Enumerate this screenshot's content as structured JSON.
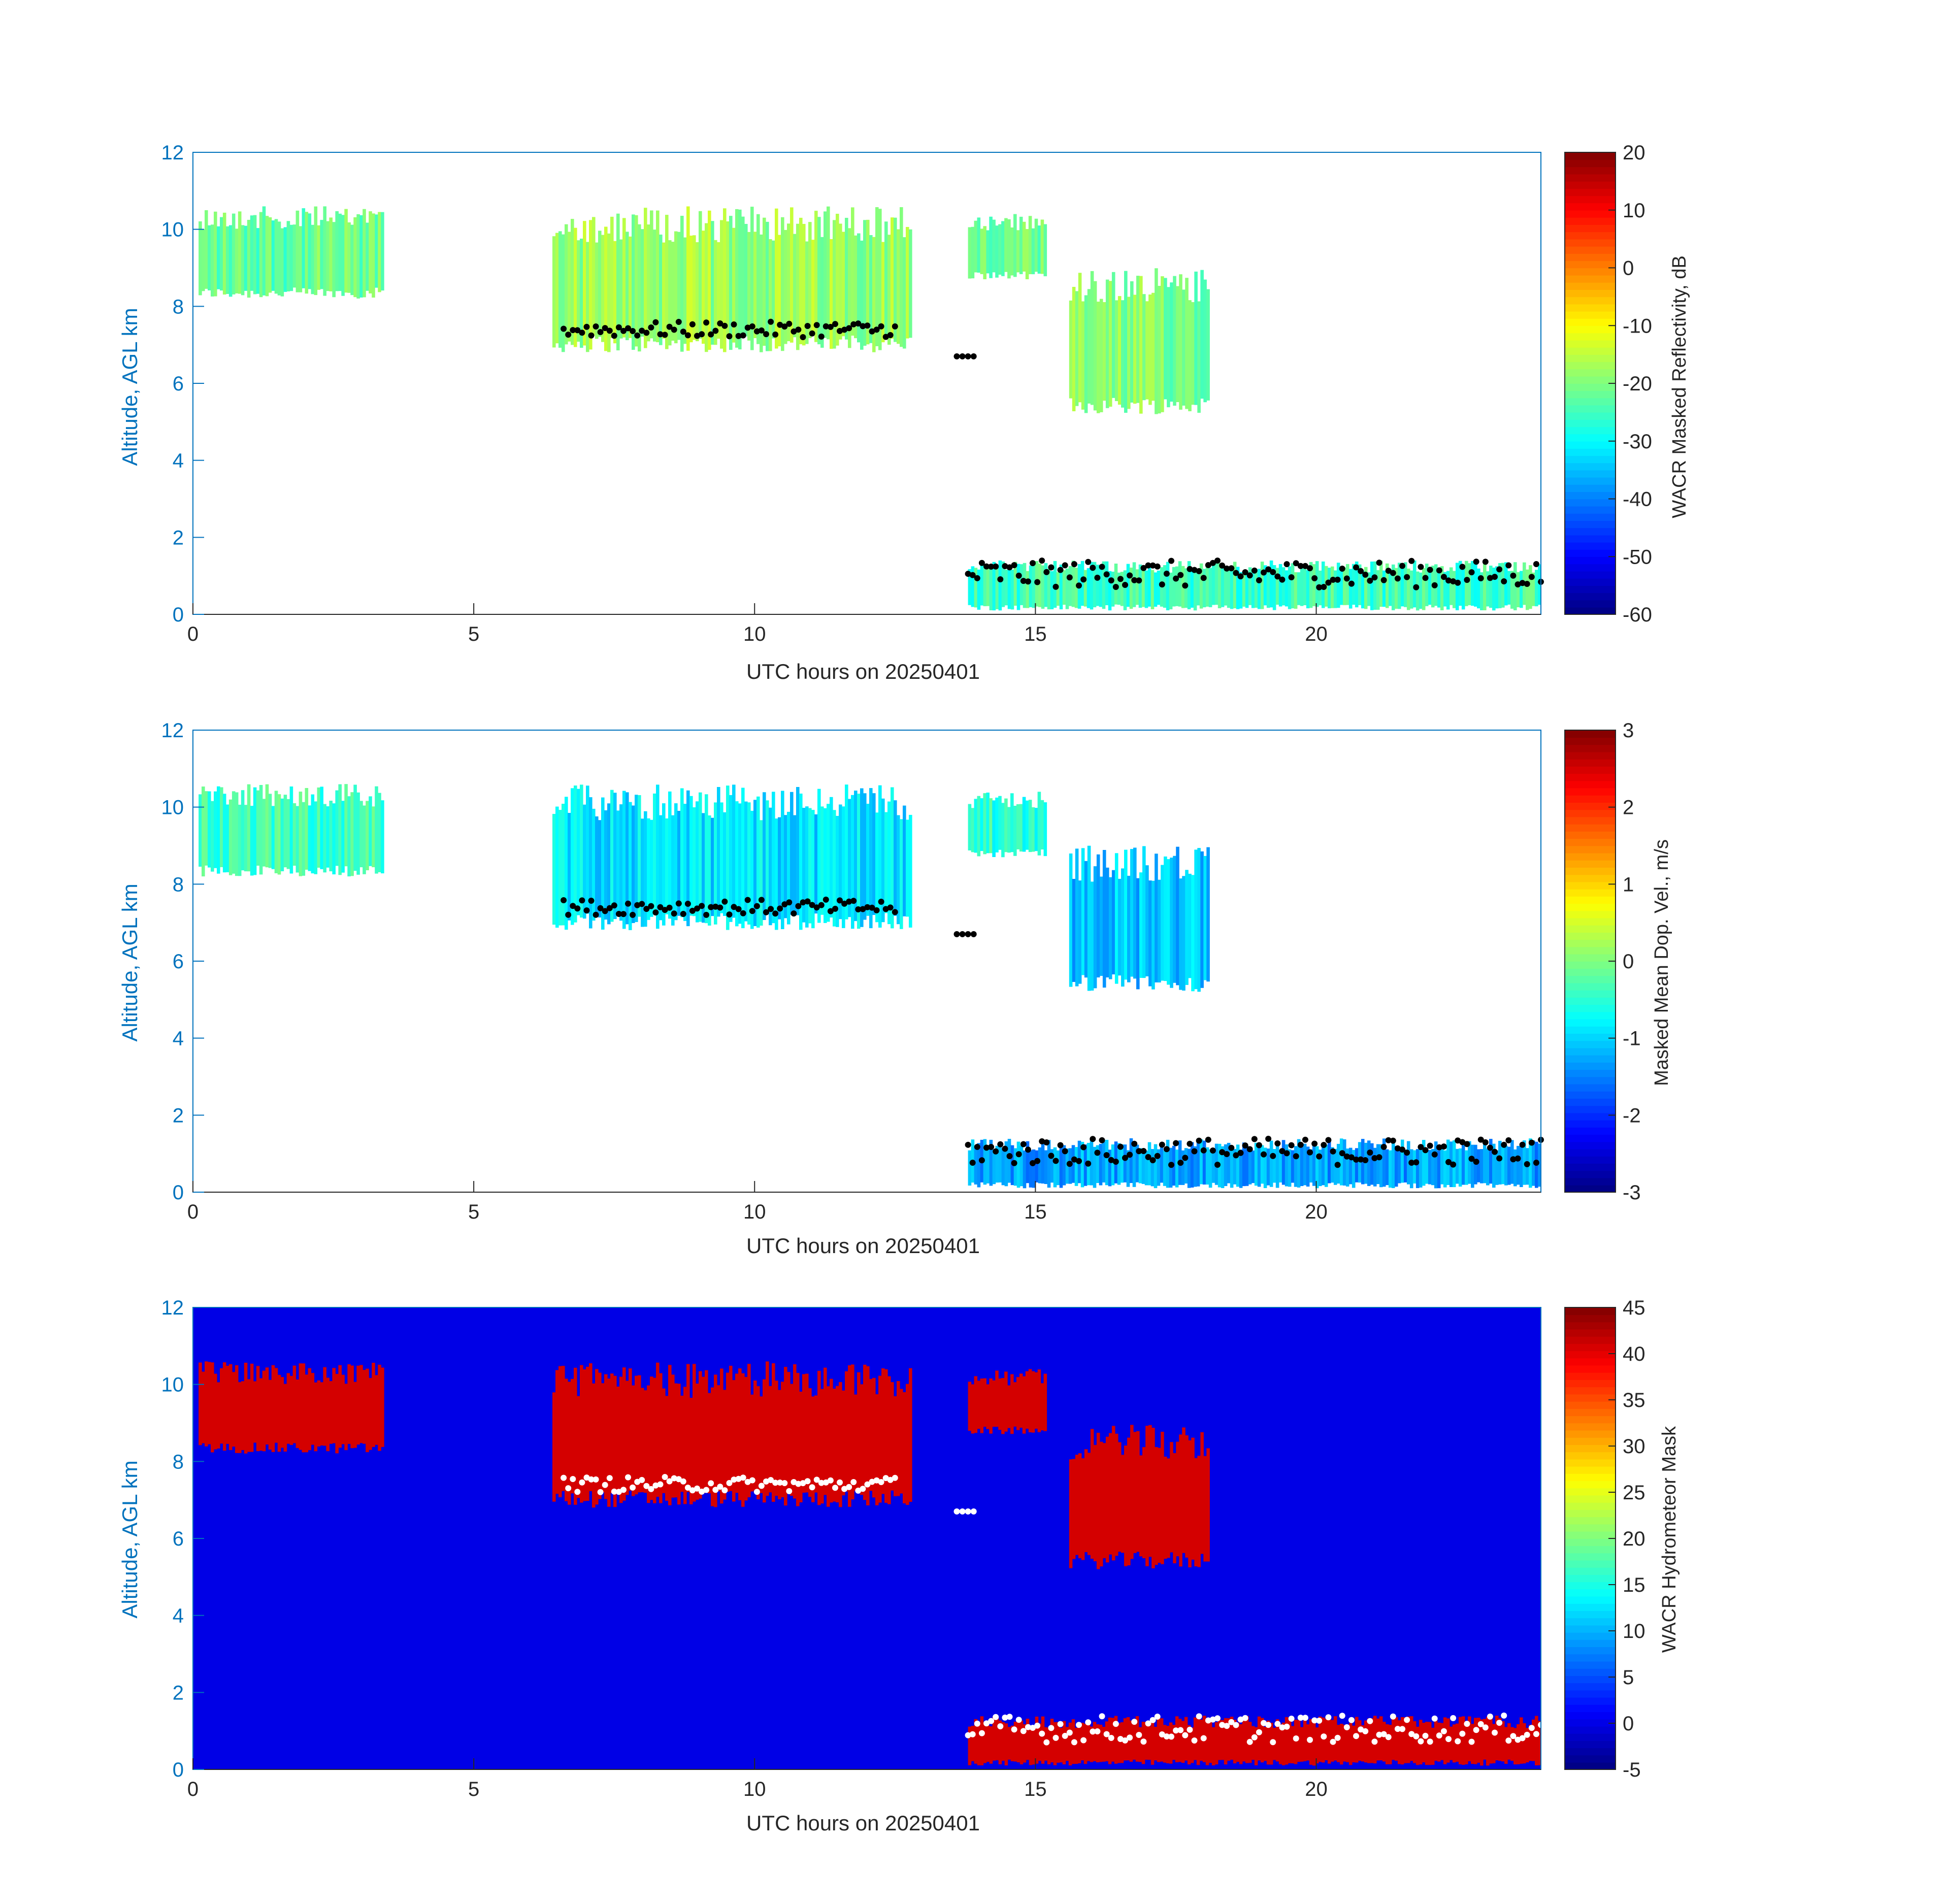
{
  "colors": {
    "axis_blue": "#0072bd",
    "axis_black": "#262626",
    "mask_background": "#0000e6",
    "mask_cloud": "#d40000",
    "cbh_points_dark": "#000000",
    "cbh_points_light": "#ffffff"
  },
  "chart_data": [
    {
      "type": "heatmap",
      "name": "panel-reflectivity",
      "xlabel": "UTC hours on 20250401",
      "ylabel": "Altitude, AGL km",
      "xlim": [
        0,
        24
      ],
      "ylim": [
        0,
        12
      ],
      "xticks": [
        0,
        5,
        10,
        15,
        20
      ],
      "yticks": [
        0,
        2,
        4,
        6,
        8,
        10,
        12
      ],
      "colorbar": {
        "label": "WACR Masked Reflectivity, dB",
        "colormap": "jet",
        "range": [
          -60,
          20
        ],
        "ticks": [
          20,
          10,
          0,
          -10,
          -20,
          -30,
          -40,
          -50,
          -60
        ]
      },
      "regions": [
        {
          "x": [
            0.1,
            3.4
          ],
          "y": [
            8.2,
            10.6
          ],
          "value": -22
        },
        {
          "x": [
            6.4,
            12.8
          ],
          "y": [
            6.8,
            10.6
          ],
          "value": -18
        },
        {
          "x": [
            13.8,
            15.2
          ],
          "y": [
            8.7,
            10.4
          ],
          "value": -22
        },
        {
          "x": [
            15.6,
            18.1
          ],
          "y": [
            5.2,
            9.0
          ],
          "value": -20
        },
        {
          "x": [
            13.8,
            24.0
          ],
          "y": [
            0.1,
            1.4
          ],
          "value": -25
        }
      ],
      "cloud_base_points": [
        {
          "x": [
            6.6,
            12.5
          ],
          "y": [
            7.2,
            7.6
          ]
        },
        {
          "x": [
            13.6,
            13.9
          ],
          "y": [
            6.7,
            6.7
          ]
        },
        {
          "x": [
            13.8,
            24.0
          ],
          "y": [
            0.7,
            1.4
          ]
        }
      ]
    },
    {
      "type": "heatmap",
      "name": "panel-doppler-velocity",
      "xlabel": "UTC hours on 20250401",
      "ylabel": "Altitude, AGL km",
      "xlim": [
        0,
        24
      ],
      "ylim": [
        0,
        12
      ],
      "xticks": [
        0,
        5,
        10,
        15,
        20
      ],
      "yticks": [
        0,
        2,
        4,
        6,
        8,
        10,
        12
      ],
      "colorbar": {
        "label": "Masked Mean Dop. Vel., m/s",
        "colormap": "jet",
        "range": [
          -3,
          3
        ],
        "ticks": [
          3,
          2,
          1,
          0,
          -1,
          -2,
          -3
        ]
      },
      "regions": [
        {
          "x": [
            0.1,
            3.4
          ],
          "y": [
            8.2,
            10.6
          ],
          "value": -0.4
        },
        {
          "x": [
            6.4,
            12.8
          ],
          "y": [
            6.8,
            10.6
          ],
          "value": -0.9
        },
        {
          "x": [
            13.8,
            15.2
          ],
          "y": [
            8.7,
            10.4
          ],
          "value": -0.5
        },
        {
          "x": [
            15.6,
            18.1
          ],
          "y": [
            5.2,
            9.0
          ],
          "value": -1.1
        },
        {
          "x": [
            13.8,
            24.0
          ],
          "y": [
            0.1,
            1.4
          ],
          "value": -1.3
        }
      ],
      "cloud_base_points": [
        {
          "x": [
            6.6,
            12.5
          ],
          "y": [
            7.2,
            7.6
          ]
        },
        {
          "x": [
            13.6,
            13.9
          ],
          "y": [
            6.7,
            6.7
          ]
        },
        {
          "x": [
            13.8,
            24.0
          ],
          "y": [
            0.7,
            1.4
          ]
        }
      ]
    },
    {
      "type": "heatmap",
      "name": "panel-hydrometeor-mask",
      "xlabel": "UTC hours on 20250401",
      "ylabel": "Altitude, AGL km",
      "xlim": [
        0,
        24
      ],
      "ylim": [
        0,
        12
      ],
      "xticks": [
        0,
        5,
        10,
        15,
        20
      ],
      "yticks": [
        0,
        2,
        4,
        6,
        8,
        10,
        12
      ],
      "colorbar": {
        "label": "WACR Hydrometeor Mask",
        "colormap": "jet",
        "range": [
          -5,
          45
        ],
        "ticks": [
          45,
          40,
          35,
          30,
          25,
          20,
          15,
          10,
          5,
          0,
          -5
        ]
      },
      "background_value": 0,
      "regions": [
        {
          "x": [
            0.1,
            3.4
          ],
          "y": [
            8.2,
            10.6
          ],
          "value": 40
        },
        {
          "x": [
            6.4,
            12.8
          ],
          "y": [
            6.8,
            10.6
          ],
          "value": 40
        },
        {
          "x": [
            13.8,
            15.2
          ],
          "y": [
            8.7,
            10.4
          ],
          "value": 40
        },
        {
          "x": [
            15.6,
            18.1
          ],
          "y": [
            5.2,
            9.0
          ],
          "value": 40
        },
        {
          "x": [
            13.8,
            24.0
          ],
          "y": [
            0.1,
            1.4
          ],
          "value": 40
        }
      ],
      "cloud_base_points": [
        {
          "x": [
            6.6,
            12.5
          ],
          "y": [
            7.2,
            7.6
          ]
        },
        {
          "x": [
            13.6,
            13.9
          ],
          "y": [
            6.7,
            6.7
          ]
        },
        {
          "x": [
            13.8,
            24.0
          ],
          "y": [
            0.7,
            1.4
          ]
        }
      ]
    }
  ]
}
